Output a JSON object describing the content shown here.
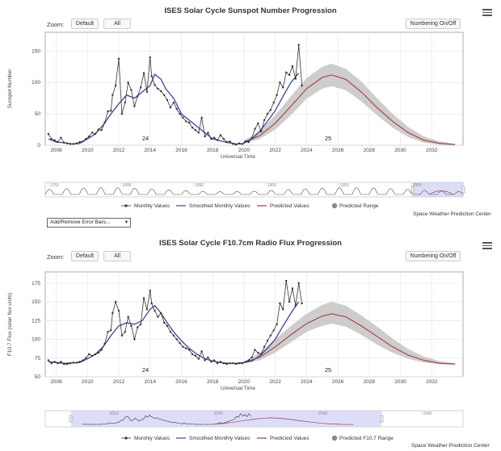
{
  "charts": [
    {
      "title": "ISES Solar Cycle Sunspot Number Progression",
      "zoom_label": "Zoom:",
      "zoom_buttons": [
        "Default",
        "All"
      ],
      "numbering_button": "Numbering On/Off",
      "ylabel": "Sunspot Number",
      "xlabel": "Universal Time",
      "y_ticks": [
        "0",
        "50",
        "100",
        "150"
      ],
      "x_ticks": [
        "2008",
        "2010",
        "2012",
        "2014",
        "2016",
        "2018",
        "2020",
        "2022",
        "2024",
        "2026",
        "2028",
        "2030",
        "2032"
      ],
      "cycle_labels": [
        "24",
        "25"
      ],
      "navigator_ticks": [
        "1750",
        "1800",
        "1850",
        "1900",
        "1950",
        "2000"
      ],
      "legend": [
        "Monthly Values",
        "Smoothed Monthly Values",
        "Predicted Values",
        "Predicted Range"
      ],
      "error_bar_select": "Add/Remove Error Bars...",
      "credit": "Space Weather Prediction Center"
    },
    {
      "title": "ISES Solar Cycle F10.7cm Radio Flux Progression",
      "zoom_label": "Zoom:",
      "zoom_buttons": [
        "Default",
        "All"
      ],
      "numbering_button": "Numbering On/Off",
      "ylabel": "F10.7 Flux (solar flux units)",
      "xlabel": "Universal Time",
      "y_ticks": [
        "50",
        "75",
        "100",
        "125",
        "150",
        "175"
      ],
      "x_ticks": [
        "2008",
        "2010",
        "2012",
        "2014",
        "2016",
        "2018",
        "2020",
        "2022",
        "2024",
        "2026",
        "2028",
        "2030",
        "2032"
      ],
      "cycle_labels": [
        "24",
        "25"
      ],
      "navigator_ticks": [
        "2010",
        "2020",
        "2030",
        "2040"
      ],
      "legend": [
        "Monthly Values",
        "Smoothed Monthly Values",
        "Predicted Values",
        "Predicted F10.7 Range"
      ],
      "credit": "Space Weather Prediction Center"
    }
  ],
  "colors": {
    "monthly": "#333333",
    "smoothed": "#3f3fa8",
    "predicted": "#b03a3a",
    "range": "#c8c8c8",
    "navigator_window": "#c9cdf5"
  },
  "chart_data": [
    {
      "type": "line",
      "title": "ISES Solar Cycle Sunspot Number Progression",
      "xlabel": "Universal Time",
      "ylabel": "Sunspot Number",
      "xlim": [
        2007.3,
        2034.0
      ],
      "ylim": [
        0,
        180
      ],
      "y_ticks": [
        0,
        50,
        100,
        150
      ],
      "x_ticks": [
        2008,
        2010,
        2012,
        2014,
        2016,
        2018,
        2020,
        2022,
        2024,
        2026,
        2028,
        2030,
        2032
      ],
      "grid": true,
      "series": [
        {
          "name": "Monthly Values",
          "x": [
            2007.5,
            2007.7,
            2007.9,
            2008.1,
            2008.3,
            2008.5,
            2008.7,
            2008.9,
            2009.1,
            2009.3,
            2009.5,
            2009.7,
            2009.9,
            2010.1,
            2010.3,
            2010.5,
            2010.7,
            2010.9,
            2011.1,
            2011.3,
            2011.5,
            2011.6,
            2011.8,
            2012.0,
            2012.2,
            2012.4,
            2012.6,
            2012.8,
            2013.0,
            2013.2,
            2013.4,
            2013.6,
            2013.8,
            2014.0,
            2014.1,
            2014.3,
            2014.5,
            2014.7,
            2014.9,
            2015.1,
            2015.3,
            2015.5,
            2015.7,
            2015.9,
            2016.1,
            2016.3,
            2016.5,
            2016.7,
            2016.9,
            2017.1,
            2017.3,
            2017.5,
            2017.7,
            2017.9,
            2018.1,
            2018.3,
            2018.5,
            2018.7,
            2018.9,
            2019.1,
            2019.3,
            2019.5,
            2019.7,
            2019.9,
            2020.1,
            2020.3,
            2020.5,
            2020.7,
            2020.9,
            2021.1,
            2021.3,
            2021.5,
            2021.7,
            2021.9,
            2022.1,
            2022.3,
            2022.5,
            2022.7,
            2022.9,
            2023.1,
            2023.3,
            2023.5,
            2023.7
          ],
          "y": [
            18,
            10,
            8,
            5,
            12,
            4,
            3,
            2,
            2,
            3,
            5,
            6,
            10,
            14,
            20,
            18,
            25,
            24,
            36,
            54,
            55,
            80,
            95,
            138,
            50,
            68,
            100,
            88,
            62,
            78,
            92,
            115,
            85,
            140,
            110,
            96,
            90,
            86,
            80,
            72,
            60,
            68,
            58,
            50,
            44,
            38,
            36,
            28,
            24,
            20,
            44,
            14,
            20,
            10,
            12,
            8,
            16,
            10,
            5,
            6,
            2,
            1,
            3,
            2,
            6,
            5,
            11,
            26,
            35,
            22,
            40,
            50,
            56,
            68,
            80,
            100,
            92,
            116,
            112,
            126,
            106,
            160,
            95
          ]
        },
        {
          "name": "Smoothed Monthly Values",
          "x": [
            2007.5,
            2008.0,
            2008.5,
            2009.0,
            2009.5,
            2010.0,
            2010.5,
            2011.0,
            2011.5,
            2012.0,
            2012.5,
            2013.0,
            2013.5,
            2014.0,
            2014.3,
            2014.7,
            2015.0,
            2015.5,
            2016.0,
            2016.5,
            2017.0,
            2017.5,
            2018.0,
            2018.5,
            2019.0,
            2019.5,
            2019.9,
            2020.5,
            2021.0,
            2021.5,
            2022.0,
            2022.5,
            2023.0,
            2023.5
          ],
          "y": [
            10,
            5,
            4,
            2,
            3,
            10,
            18,
            32,
            50,
            66,
            80,
            75,
            85,
            95,
            113,
            105,
            90,
            75,
            50,
            40,
            30,
            20,
            10,
            7,
            4,
            2,
            2,
            10,
            22,
            38,
            55,
            78,
            100,
            115
          ]
        },
        {
          "name": "Predicted Values",
          "x": [
            2020.0,
            2021.0,
            2022.0,
            2023.0,
            2024.0,
            2025.0,
            2025.6,
            2026.5,
            2027.5,
            2028.5,
            2029.5,
            2030.5,
            2031.5,
            2032.5,
            2033.5
          ],
          "y": [
            5,
            15,
            35,
            62,
            90,
            108,
            112,
            105,
            85,
            60,
            38,
            20,
            8,
            3,
            1
          ]
        },
        {
          "name": "Predicted Range",
          "x": [
            2020.0,
            2021.0,
            2022.0,
            2023.0,
            2024.0,
            2025.0,
            2025.6,
            2026.5,
            2027.5,
            2028.5,
            2029.5,
            2030.5,
            2031.5,
            2032.5,
            2033.5
          ],
          "low": [
            3,
            10,
            25,
            48,
            74,
            90,
            94,
            88,
            70,
            48,
            28,
            13,
            4,
            1,
            0
          ],
          "high": [
            8,
            22,
            48,
            78,
            107,
            125,
            130,
            122,
            102,
            75,
            50,
            29,
            14,
            6,
            2
          ]
        }
      ]
    },
    {
      "type": "line",
      "title": "ISES Solar Cycle F10.7cm Radio Flux Progression",
      "xlabel": "Universal Time",
      "ylabel": "F10.7 Flux (solar flux units)",
      "xlim": [
        2007.3,
        2034.0
      ],
      "ylim": [
        50,
        190
      ],
      "y_ticks": [
        50,
        75,
        100,
        125,
        150,
        175
      ],
      "x_ticks": [
        2008,
        2010,
        2012,
        2014,
        2016,
        2018,
        2020,
        2022,
        2024,
        2026,
        2028,
        2030,
        2032
      ],
      "grid": true,
      "series": [
        {
          "name": "Monthly Values",
          "x": [
            2007.5,
            2007.7,
            2007.9,
            2008.1,
            2008.3,
            2008.5,
            2008.7,
            2008.9,
            2009.1,
            2009.3,
            2009.5,
            2009.7,
            2009.9,
            2010.1,
            2010.3,
            2010.5,
            2010.7,
            2010.9,
            2011.1,
            2011.3,
            2011.5,
            2011.6,
            2011.8,
            2012.0,
            2012.2,
            2012.4,
            2012.6,
            2012.8,
            2013.0,
            2013.2,
            2013.4,
            2013.6,
            2013.8,
            2014.0,
            2014.1,
            2014.3,
            2014.5,
            2014.7,
            2014.9,
            2015.1,
            2015.3,
            2015.5,
            2015.7,
            2015.9,
            2016.1,
            2016.3,
            2016.5,
            2016.7,
            2016.9,
            2017.1,
            2017.3,
            2017.5,
            2017.7,
            2017.9,
            2018.1,
            2018.3,
            2018.5,
            2018.7,
            2018.9,
            2019.1,
            2019.3,
            2019.5,
            2019.7,
            2019.9,
            2020.1,
            2020.3,
            2020.5,
            2020.7,
            2020.9,
            2021.1,
            2021.3,
            2021.5,
            2021.7,
            2021.9,
            2022.1,
            2022.3,
            2022.5,
            2022.7,
            2022.9,
            2023.1,
            2023.3,
            2023.5,
            2023.7
          ],
          "y": [
            72,
            68,
            70,
            68,
            70,
            67,
            67,
            68,
            69,
            69,
            70,
            72,
            75,
            80,
            78,
            80,
            82,
            86,
            94,
            110,
            112,
            135,
            150,
            138,
            105,
            110,
            130,
            118,
            100,
            116,
            120,
            155,
            140,
            165,
            148,
            138,
            130,
            135,
            122,
            118,
            110,
            105,
            100,
            95,
            90,
            88,
            86,
            80,
            78,
            74,
            84,
            72,
            76,
            70,
            72,
            68,
            70,
            68,
            67,
            68,
            68,
            67,
            68,
            68,
            70,
            72,
            76,
            86,
            82,
            80,
            90,
            98,
            105,
            112,
            120,
            148,
            140,
            178,
            150,
            168,
            145,
            175,
            148
          ]
        },
        {
          "name": "Smoothed Monthly Values",
          "x": [
            2007.5,
            2008.5,
            2009.5,
            2010.0,
            2010.5,
            2011.0,
            2011.5,
            2012.0,
            2012.5,
            2013.0,
            2013.5,
            2014.0,
            2014.3,
            2014.7,
            2015.0,
            2015.5,
            2016.0,
            2016.5,
            2017.0,
            2017.5,
            2018.0,
            2018.5,
            2019.0,
            2019.5,
            2020.0,
            2020.5,
            2021.0,
            2021.5,
            2022.0,
            2022.5,
            2023.0,
            2023.5
          ],
          "y": [
            70,
            68,
            69,
            74,
            80,
            90,
            105,
            118,
            122,
            120,
            125,
            140,
            145,
            135,
            125,
            110,
            98,
            88,
            80,
            74,
            71,
            69,
            68,
            68,
            69,
            71,
            78,
            88,
            100,
            118,
            135,
            150
          ]
        },
        {
          "name": "Predicted Values",
          "x": [
            2020.0,
            2021.0,
            2022.0,
            2023.0,
            2024.0,
            2025.0,
            2025.6,
            2026.5,
            2027.5,
            2028.5,
            2029.5,
            2030.5,
            2031.5,
            2032.5,
            2033.5
          ],
          "y": [
            69,
            76,
            90,
            106,
            121,
            131,
            134,
            130,
            118,
            104,
            90,
            79,
            72,
            68,
            67
          ]
        },
        {
          "name": "Predicted F10.7 Range",
          "x": [
            2020.0,
            2021.0,
            2022.0,
            2023.0,
            2024.0,
            2025.0,
            2025.6,
            2026.5,
            2027.5,
            2028.5,
            2029.5,
            2030.5,
            2031.5,
            2032.5,
            2033.5
          ],
          "low": [
            68,
            72,
            82,
            96,
            110,
            118,
            121,
            117,
            106,
            93,
            82,
            74,
            69,
            67,
            66
          ],
          "high": [
            70,
            82,
            100,
            118,
            134,
            146,
            150,
            145,
            132,
            117,
            101,
            87,
            77,
            71,
            68
          ]
        }
      ]
    }
  ]
}
